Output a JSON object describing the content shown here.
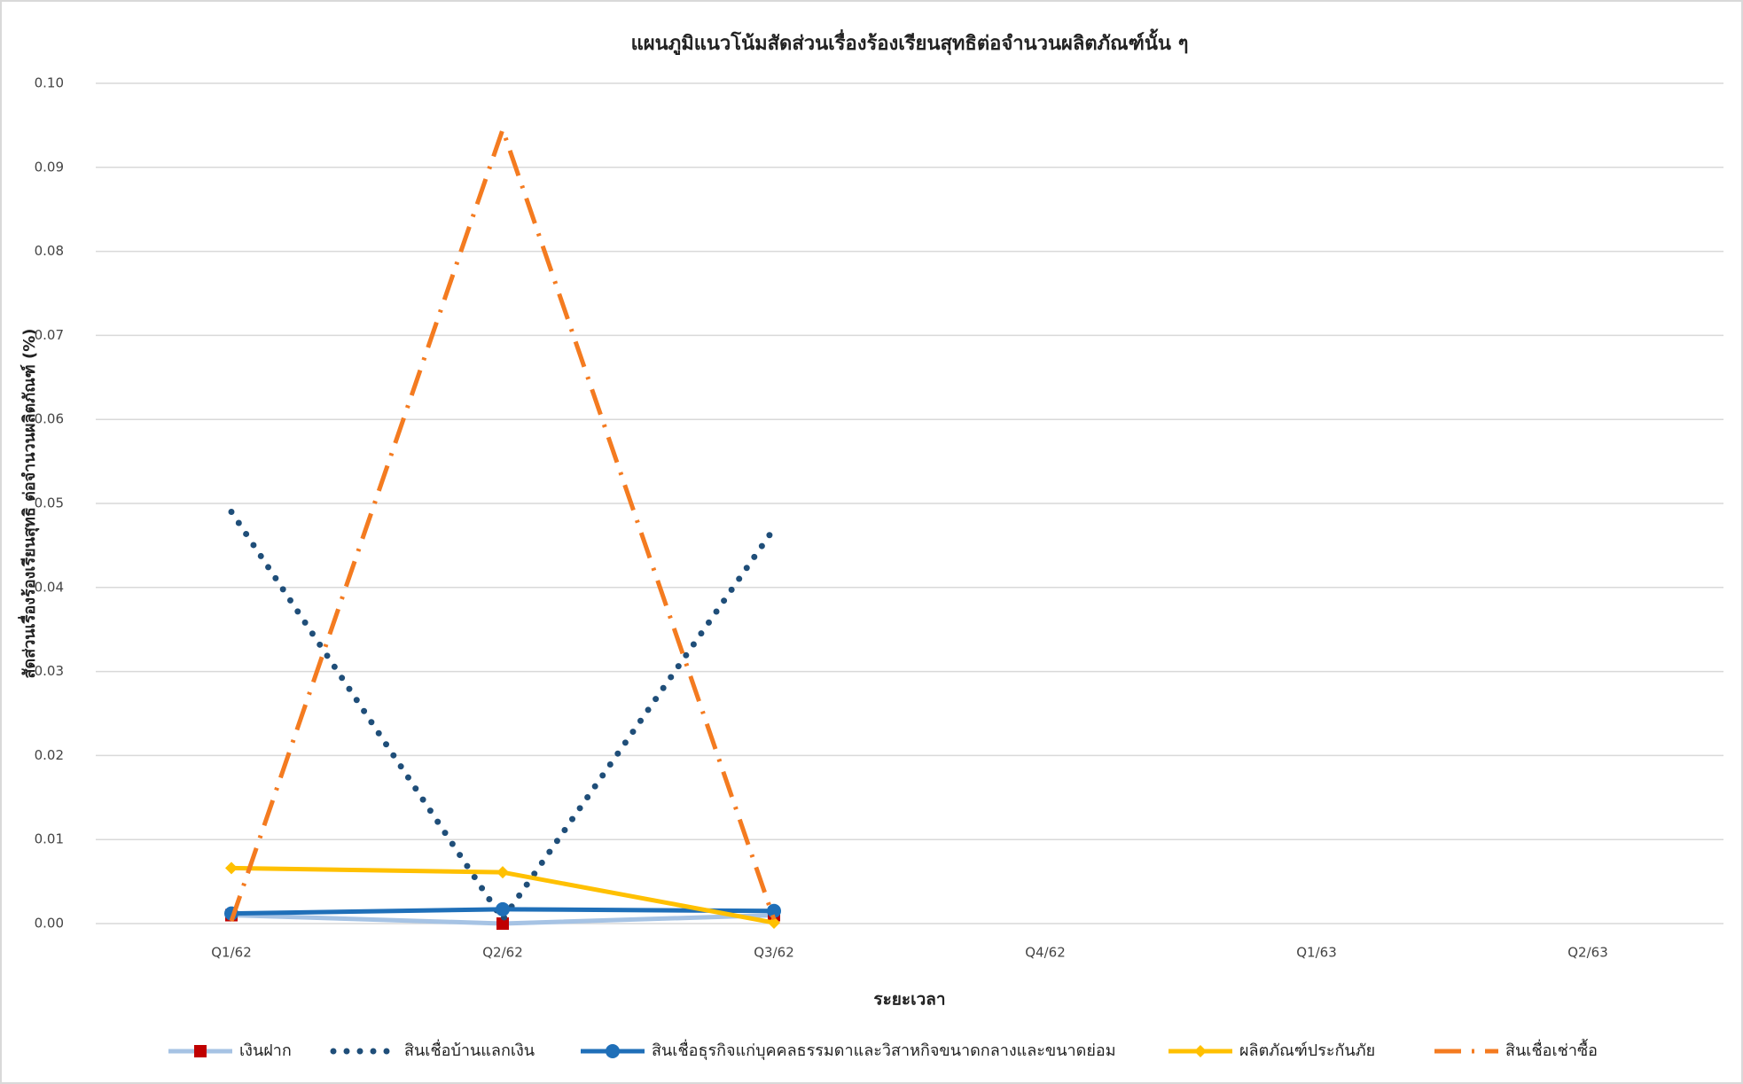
{
  "chart_data": {
    "type": "line",
    "title": "แผนภูมิแนวโน้มสัดส่วนเรื่องร้องเรียนสุทธิต่อจำนวนผลิตภัณฑ์นั้น ๆ",
    "x_label": "ระยะเวลา",
    "y_label": "สัดส่วนเรื่องร้องเรียนสุทธิ ต่อจำนวนผลิตภัณฑ์ (%)",
    "categories": [
      "Q1/62",
      "Q2/62",
      "Q3/62",
      "Q4/62",
      "Q1/63",
      "Q2/63"
    ],
    "ylim": [
      0,
      0.1
    ],
    "yticks": [
      {
        "value": 0,
        "label": "0.00"
      },
      0.01,
      0.02,
      0.03,
      0.04,
      0.05,
      0.06,
      0.07,
      0.08,
      0.09,
      {
        "value": 0.1,
        "label": "0.10"
      }
    ],
    "grid": true,
    "legend": "bottom",
    "series": [
      {
        "name": "เงินฝาก",
        "color": "#a6c3e4",
        "marker_color": "#c00000",
        "marker": "square",
        "line_style": "solid",
        "values": [
          0.001,
          0,
          0.001,
          null,
          null,
          null
        ]
      },
      {
        "name": "สินเชื่อบ้านแลกเงิน",
        "color": "#1f4e79",
        "marker": "none",
        "line_style": "dot",
        "values": [
          0.049,
          0.0005,
          0.047,
          null,
          null,
          null
        ]
      },
      {
        "name": "สินเชื่อธุรกิจแก่บุคคลธรรมดาและวิสาหกิจขนาดกลางและขนาดย่อม",
        "color": "#1f6fb8",
        "marker": "circle",
        "line_style": "solid",
        "values": [
          0.0012,
          0.0017,
          0.0015,
          null,
          null,
          null
        ]
      },
      {
        "name": "ผลิตภัณฑ์ประกันภัย",
        "color": "#ffc000",
        "marker": "diamond",
        "line_style": "solid",
        "values": [
          0.0066,
          0.0061,
          0.0001,
          null,
          null,
          null
        ]
      },
      {
        "name": "สินเชื่อเช่าซื้อ",
        "color": "#f47b20",
        "marker": "none",
        "line_style": "dashdot",
        "values": [
          0.0003,
          0.0945,
          0.0005,
          null,
          null,
          null
        ]
      }
    ]
  }
}
